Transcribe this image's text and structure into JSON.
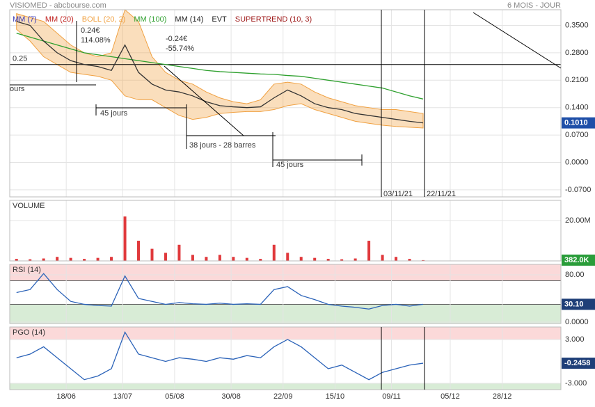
{
  "header": {
    "title": "VISIOMED - abcbourse.com",
    "period": "6 MOIS - JOUR"
  },
  "legend": [
    {
      "name": "MM (7)",
      "color": "#3a3ab8"
    },
    {
      "name": "MM (20)",
      "color": "#c0201e"
    },
    {
      "name": "BOLL (20, 2)",
      "color": "#f0a040"
    },
    {
      "name": "MM (100)",
      "color": "#2ea02e"
    },
    {
      "name": "MM (14)",
      "color": "#222222"
    },
    {
      "name": "EVT",
      "color": "#222222"
    },
    {
      "name": "SUPERTREND (10, 3)",
      "color": "#a01c1c"
    }
  ],
  "annotations": [
    {
      "text": "0.24€"
    },
    {
      "text": "114.08%"
    },
    {
      "text": "-0.24€"
    },
    {
      "text": "-55.74%"
    },
    {
      "text": "ours"
    },
    {
      "text": "45 jours"
    },
    {
      "text": "38 jours - 28 barres"
    },
    {
      "text": "45 jours"
    },
    {
      "text": "03/11/21"
    },
    {
      "text": "22/11/21"
    }
  ],
  "chart_data": [
    {
      "type": "line",
      "title": "",
      "x": [
        147,
        153,
        159,
        165,
        171,
        177,
        183,
        189,
        195,
        201,
        207,
        213,
        219,
        225,
        231,
        237,
        243,
        249,
        255,
        261,
        267,
        273,
        279,
        285,
        291,
        297,
        303,
        309,
        315,
        321,
        327
      ],
      "xlim": [
        144,
        388
      ],
      "ylim": [
        -0.088,
        0.39
      ],
      "yticks": [
        {
          "value": 0.35,
          "label": "0.3500"
        },
        {
          "value": 0.28,
          "label": "0.2800"
        },
        {
          "value": 0.21,
          "label": "0.2100"
        },
        {
          "value": 0.14,
          "label": "0.1400"
        },
        {
          "value": 0.07,
          "label": "0.0700"
        },
        {
          "value": 0,
          "label": "0.0000"
        },
        {
          "value": -0.07,
          "label": "-0.0700"
        }
      ],
      "band": {
        "color": "#f0a040",
        "upper": [
          0.38,
          0.37,
          0.36,
          0.33,
          0.3,
          0.28,
          0.27,
          0.28,
          0.39,
          0.36,
          0.27,
          0.23,
          0.21,
          0.2,
          0.18,
          0.165,
          0.155,
          0.15,
          0.16,
          0.2,
          0.205,
          0.2,
          0.18,
          0.165,
          0.155,
          0.145,
          0.14,
          0.135,
          0.135,
          0.13,
          0.125
        ],
        "lower": [
          0.34,
          0.31,
          0.27,
          0.25,
          0.23,
          0.225,
          0.22,
          0.21,
          0.17,
          0.16,
          0.16,
          0.14,
          0.12,
          0.11,
          0.115,
          0.125,
          0.128,
          0.13,
          0.13,
          0.135,
          0.145,
          0.15,
          0.135,
          0.125,
          0.115,
          0.105,
          0.1,
          0.095,
          0.092,
          0.09,
          0.088
        ]
      },
      "series": [
        {
          "color": "#2ea02e",
          "values": [
            0.33,
            0.32,
            0.31,
            0.3,
            0.29,
            0.28,
            0.275,
            0.27,
            0.265,
            0.26,
            0.255,
            0.25,
            0.245,
            0.24,
            0.235,
            0.232,
            0.23,
            0.228,
            0.226,
            0.225,
            0.222,
            0.22,
            0.215,
            0.21,
            0.205,
            0.2,
            0.195,
            0.19,
            0.18,
            0.17,
            0.162
          ]
        },
        {
          "color": "#333333",
          "values": [
            0.36,
            0.35,
            0.31,
            0.28,
            0.26,
            0.25,
            0.245,
            0.235,
            0.3,
            0.23,
            0.2,
            0.185,
            0.18,
            0.17,
            0.155,
            0.145,
            0.142,
            0.14,
            0.142,
            0.165,
            0.185,
            0.17,
            0.15,
            0.14,
            0.135,
            0.125,
            0.12,
            0.115,
            0.11,
            0.105,
            0.101
          ]
        }
      ],
      "hline": {
        "value": 0.25,
        "label": "0.25"
      },
      "last": {
        "value": 0.101,
        "label": "0.1010",
        "color": "#1f4fa8"
      },
      "grid": true
    },
    {
      "type": "bar",
      "title": "VOLUME",
      "x": [
        147,
        153,
        159,
        165,
        171,
        177,
        183,
        189,
        195,
        201,
        207,
        213,
        219,
        225,
        231,
        237,
        243,
        249,
        255,
        261,
        267,
        273,
        279,
        285,
        291,
        297,
        303,
        309,
        315,
        321,
        327
      ],
      "xlim": [
        144,
        388
      ],
      "ylim": [
        0,
        30000000
      ],
      "yticks": [
        {
          "value": 20000000,
          "label": "20.00M"
        }
      ],
      "values": [
        1000000,
        800000,
        1200000,
        2000000,
        1500000,
        1000000,
        1500000,
        2000000,
        22000000,
        10000000,
        6000000,
        4000000,
        8000000,
        3000000,
        2000000,
        3000000,
        2000000,
        1500000,
        1000000,
        8000000,
        4000000,
        2000000,
        1500000,
        1000000,
        800000,
        1200000,
        10000000,
        3000000,
        2000000,
        1000000,
        382000
      ],
      "color": "#e0393c",
      "last": {
        "value": 382000,
        "label": "382.0K",
        "color": "#2a9d3a"
      },
      "grid": true
    },
    {
      "type": "line",
      "title": "RSI (14)",
      "x": [
        147,
        153,
        159,
        165,
        171,
        177,
        183,
        189,
        195,
        201,
        207,
        213,
        219,
        225,
        231,
        237,
        243,
        249,
        255,
        261,
        267,
        273,
        279,
        285,
        291,
        297,
        303,
        309,
        315,
        321,
        327
      ],
      "xlim": [
        144,
        388
      ],
      "ylim": [
        -2.4,
        97.6
      ],
      "yticks": [
        {
          "value": 80,
          "label": "80.00"
        },
        {
          "value": 0,
          "label": "0.0000"
        }
      ],
      "zones": [
        70,
        30
      ],
      "series": [
        {
          "color": "#2a62b8",
          "values": [
            50,
            55,
            82,
            55,
            35,
            30,
            28,
            27,
            78,
            40,
            35,
            30,
            33,
            31,
            30,
            32,
            30,
            31,
            30,
            55,
            60,
            45,
            38,
            30,
            27,
            25,
            22,
            28,
            30,
            27,
            30.1
          ]
        }
      ],
      "last": {
        "value": 30.1,
        "label": "30.10",
        "color": "#1f3f78"
      },
      "grid": true
    },
    {
      "type": "line",
      "title": "PGO (14)",
      "x": [
        147,
        153,
        159,
        165,
        171,
        177,
        183,
        189,
        195,
        201,
        207,
        213,
        219,
        225,
        231,
        237,
        243,
        249,
        255,
        261,
        267,
        273,
        279,
        285,
        291,
        297,
        303,
        309,
        315,
        321,
        327
      ],
      "xlim": [
        144,
        388
      ],
      "ylim": [
        -3.86,
        4.71
      ],
      "yticks": [
        {
          "value": 3,
          "label": "3.000"
        },
        {
          "value": -3,
          "label": "-3.000"
        }
      ],
      "zones": [
        3,
        -3
      ],
      "xticks": [
        {
          "value": 169,
          "label": "18/06"
        },
        {
          "value": 194,
          "label": "13/07"
        },
        {
          "value": 217,
          "label": "05/08"
        },
        {
          "value": 242,
          "label": "30/08"
        },
        {
          "value": 265,
          "label": "22/09"
        },
        {
          "value": 288,
          "label": "15/10"
        },
        {
          "value": 313,
          "label": "09/11"
        },
        {
          "value": 339,
          "label": "05/12"
        },
        {
          "value": 362,
          "label": "28/12"
        }
      ],
      "series": [
        {
          "color": "#2a62b8",
          "values": [
            0.5,
            1,
            2,
            0.5,
            -1,
            -2.5,
            -2,
            -1,
            4,
            1,
            0.5,
            0,
            0.5,
            0.3,
            0,
            0.5,
            0.3,
            0.8,
            0.5,
            2,
            3,
            2,
            0.5,
            -1,
            -0.5,
            -1.5,
            -2.5,
            -1.5,
            -1,
            -0.5,
            -0.2458
          ]
        }
      ],
      "last": {
        "value": -0.2458,
        "label": "-0.2458",
        "color": "#1f3f78"
      },
      "grid": true
    }
  ]
}
